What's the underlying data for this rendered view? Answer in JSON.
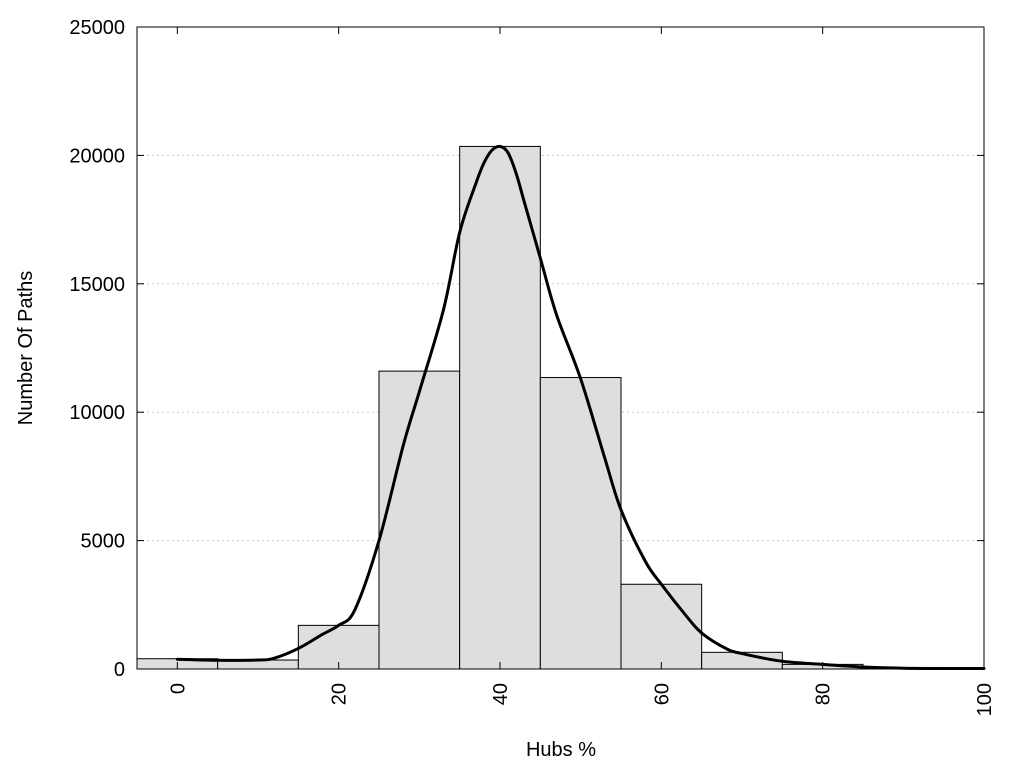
{
  "chart_data": {
    "type": "bar",
    "title": "",
    "xlabel": "Hubs %",
    "ylabel": "Number Of Paths",
    "xlim": [
      -5,
      100
    ],
    "ylim": [
      0,
      25000
    ],
    "x_ticks": [
      0,
      20,
      40,
      60,
      80,
      100
    ],
    "y_ticks": [
      0,
      5000,
      10000,
      15000,
      20000,
      25000
    ],
    "grid": "horizontal dotted",
    "bin_width": 10,
    "bars": [
      {
        "x": 0,
        "value": 400
      },
      {
        "x": 10,
        "value": 350
      },
      {
        "x": 20,
        "value": 1700
      },
      {
        "x": 30,
        "value": 11600
      },
      {
        "x": 40,
        "value": 20350
      },
      {
        "x": 50,
        "value": 11350
      },
      {
        "x": 60,
        "value": 3300
      },
      {
        "x": 70,
        "value": 650
      },
      {
        "x": 80,
        "value": 180
      },
      {
        "x": 90,
        "value": 60
      }
    ],
    "curve": {
      "x": [
        0,
        5,
        10,
        12,
        15,
        18,
        20,
        22,
        25,
        28,
        30,
        33,
        35,
        37,
        38,
        39,
        40,
        41,
        42,
        43,
        45,
        47,
        50,
        53,
        55,
        58,
        60,
        63,
        65,
        68,
        70,
        75,
        80,
        85,
        90,
        95,
        100
      ],
      "y": [
        380,
        340,
        350,
        420,
        800,
        1350,
        1700,
        2300,
        5000,
        8700,
        10800,
        14000,
        17000,
        18900,
        19700,
        20200,
        20350,
        20100,
        19300,
        18200,
        16000,
        13800,
        11300,
        8200,
        6200,
        4200,
        3300,
        2100,
        1400,
        800,
        600,
        300,
        180,
        80,
        30,
        20,
        20
      ]
    }
  }
}
